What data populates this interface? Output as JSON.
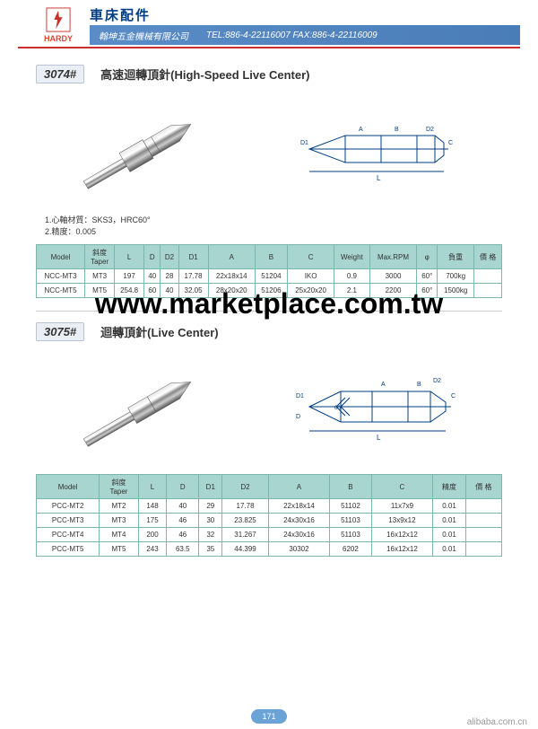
{
  "header": {
    "logo_text": "HARDY",
    "title_zh": "車床配件",
    "company": "翰坤五金機械有限公司",
    "contact": "TEL:886-4-22116007  FAX:886-4-22116009"
  },
  "product1": {
    "number": "3074#",
    "title": "高速迴轉頂針(High-Speed Live Center)",
    "notes": "1.心軸材質：SKS3，HRC60°\n2.精度：0.005",
    "table": {
      "columns": [
        "Model",
        "斜度\nTaper",
        "L",
        "D",
        "D2",
        "D1",
        "A",
        "B",
        "C",
        "Weight",
        "Max.RPM",
        "φ",
        "負重",
        "價 格"
      ],
      "rows": [
        [
          "NCC-MT3",
          "MT3",
          "197",
          "40",
          "28",
          "17.78",
          "22x18x14",
          "51204",
          "IKO",
          "0.9",
          "3000",
          "60°",
          "700kg",
          ""
        ],
        [
          "NCC-MT5",
          "MT5",
          "254.8",
          "60",
          "40",
          "32.05",
          "28x20x20",
          "51206",
          "25x20x20",
          "2.1",
          "2200",
          "60°",
          "1500kg",
          ""
        ]
      ]
    }
  },
  "product2": {
    "number": "3075#",
    "title": "迴轉頂針(Live Center)",
    "table": {
      "columns": [
        "Model",
        "斜度\nTaper",
        "L",
        "D",
        "D1",
        "D2",
        "A",
        "B",
        "C",
        "精度",
        "價 格"
      ],
      "rows": [
        [
          "PCC-MT2",
          "MT2",
          "148",
          "40",
          "29",
          "17.78",
          "22x18x14",
          "51102",
          "11x7x9",
          "0.01",
          ""
        ],
        [
          "PCC-MT3",
          "MT3",
          "175",
          "46",
          "30",
          "23.825",
          "24x30x16",
          "51103",
          "13x9x12",
          "0.01",
          ""
        ],
        [
          "PCC-MT4",
          "MT4",
          "200",
          "46",
          "32",
          "31.267",
          "24x30x16",
          "51103",
          "16x12x12",
          "0.01",
          ""
        ],
        [
          "PCC-MT5",
          "MT5",
          "243",
          "63.5",
          "35",
          "44.399",
          "30302",
          "6202",
          "16x12x12",
          "0.01",
          ""
        ]
      ]
    }
  },
  "watermark": "www.marketplace.com.tw",
  "page_number": "171",
  "footer_link": "alibaba.com.cn",
  "colors": {
    "blue_bar": "#5a8dc7",
    "red_line": "#c9302c",
    "table_header": "#a8d5d0",
    "table_border": "#7ab5ae",
    "badge": "#6ba3d6"
  }
}
